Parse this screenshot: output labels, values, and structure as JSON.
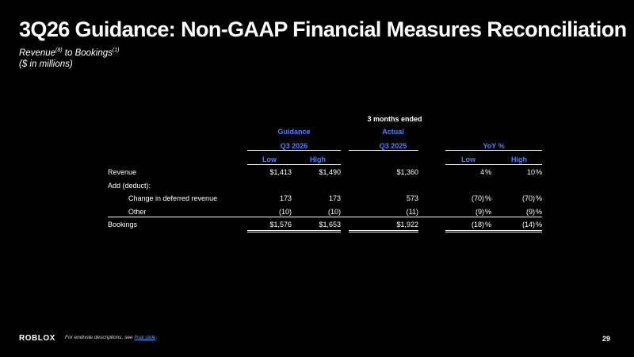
{
  "title": "3Q26 Guidance: Non-GAAP Financial Measures Reconciliation",
  "subtitle": {
    "main": "Revenue",
    "sup1": "(8)",
    "mid": " to Bookings",
    "sup2": "(1)",
    "units": "($ in millions)"
  },
  "table": {
    "period_header": "3 months ended",
    "group_headers": {
      "guidance": "Guidance",
      "actual": "Actual"
    },
    "period_labels": {
      "guidance": "Q3 2026",
      "actual": "Q3 2025",
      "yoy": "YoY %"
    },
    "col_labels": {
      "low": "Low",
      "high": "High",
      "yoy_low": "Low",
      "yoy_high": "High"
    },
    "rows": [
      {
        "label": "Revenue",
        "low": "$1,413",
        "high": "$1,490",
        "actual": "$1,360",
        "yoy_low": "4",
        "yoy_low_pct": "%",
        "yoy_high": "10",
        "yoy_high_pct": "%"
      },
      {
        "label": "Add (deduct):"
      },
      {
        "label": "Change in deferred revenue",
        "low": "173",
        "high": "173",
        "actual": "573",
        "yoy_low": "(70)",
        "yoy_low_pct": "%",
        "yoy_high": "(70)",
        "yoy_high_pct": "%"
      },
      {
        "label": "Other",
        "low": "(10)",
        "high": "(10)",
        "actual": "(11)",
        "yoy_low": "(9)",
        "yoy_low_pct": "%",
        "yoy_high": "(9)",
        "yoy_high_pct": "%"
      },
      {
        "label": "Bookings",
        "low": "$1,576",
        "high": "$1,653",
        "actual": "$1,922",
        "yoy_low": "(18)",
        "yoy_low_pct": "%",
        "yoy_high": "(14)",
        "yoy_high_pct": "%"
      }
    ]
  },
  "footer": {
    "logo": "ROBLOX",
    "note_prefix": "For endnote descriptions, see ",
    "note_link": "final slide",
    "note_suffix": ".",
    "page_number": "29"
  }
}
